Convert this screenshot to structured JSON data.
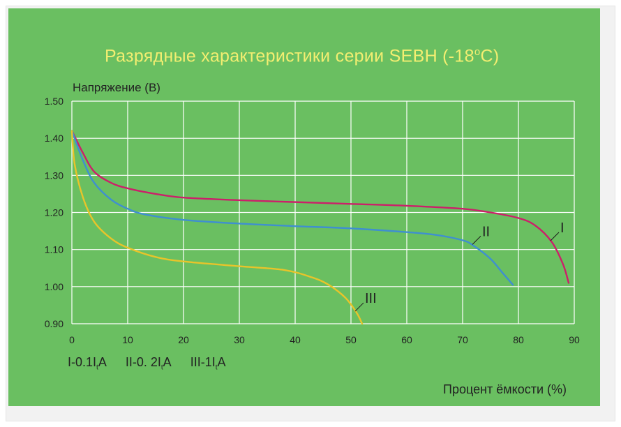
{
  "chart_data": {
    "type": "line",
    "title": "Разрядные характеристики серии SEBH (-18",
    "title_sup": "o",
    "title_tail": "C)",
    "ylabel": "Напряжение (В)",
    "xlabel": "Процент ёмкости (%)",
    "xlim": [
      0,
      90
    ],
    "ylim": [
      0.9,
      1.5
    ],
    "x_ticks": [
      "0",
      "10",
      "20",
      "30",
      "40",
      "50",
      "60",
      "70",
      "80",
      "90"
    ],
    "y_ticks": [
      "0.90",
      "1.00",
      "1.10",
      "1.20",
      "1.30",
      "1.40",
      "1.50"
    ],
    "grid": true,
    "legend_items": [
      {
        "label_a": "I-0.1I",
        "sub": "t",
        "label_b": "A"
      },
      {
        "label_a": "II-0. 2I",
        "sub": "t",
        "label_b": "A"
      },
      {
        "label_a": "III-1I",
        "sub": "t",
        "label_b": "A"
      }
    ],
    "series": [
      {
        "name": "I",
        "color": "#cc1f6a",
        "points": [
          [
            0,
            1.42
          ],
          [
            2,
            1.36
          ],
          [
            4,
            1.31
          ],
          [
            7,
            1.28
          ],
          [
            10,
            1.265
          ],
          [
            15,
            1.25
          ],
          [
            20,
            1.24
          ],
          [
            30,
            1.233
          ],
          [
            40,
            1.228
          ],
          [
            50,
            1.223
          ],
          [
            60,
            1.218
          ],
          [
            70,
            1.21
          ],
          [
            75,
            1.2
          ],
          [
            80,
            1.185
          ],
          [
            83,
            1.165
          ],
          [
            86,
            1.12
          ],
          [
            88,
            1.06
          ],
          [
            89,
            1.01
          ]
        ]
      },
      {
        "name": "II",
        "color": "#3f8fd0",
        "points": [
          [
            0,
            1.42
          ],
          [
            2,
            1.34
          ],
          [
            4,
            1.28
          ],
          [
            7,
            1.235
          ],
          [
            10,
            1.21
          ],
          [
            13,
            1.195
          ],
          [
            20,
            1.18
          ],
          [
            30,
            1.17
          ],
          [
            40,
            1.163
          ],
          [
            50,
            1.157
          ],
          [
            60,
            1.147
          ],
          [
            65,
            1.14
          ],
          [
            70,
            1.125
          ],
          [
            72,
            1.11
          ],
          [
            75,
            1.075
          ],
          [
            77,
            1.04
          ],
          [
            79,
            1.005
          ]
        ]
      },
      {
        "name": "III",
        "color": "#e8c42a",
        "points": [
          [
            0,
            1.42
          ],
          [
            0.5,
            1.33
          ],
          [
            2,
            1.24
          ],
          [
            4,
            1.175
          ],
          [
            7,
            1.13
          ],
          [
            10,
            1.105
          ],
          [
            15,
            1.08
          ],
          [
            20,
            1.068
          ],
          [
            30,
            1.055
          ],
          [
            38,
            1.045
          ],
          [
            43,
            1.025
          ],
          [
            46,
            1.005
          ],
          [
            49,
            0.97
          ],
          [
            51,
            0.93
          ],
          [
            52,
            0.9
          ]
        ]
      }
    ],
    "annotations": [
      {
        "text": "I",
        "series": "I"
      },
      {
        "text": "II",
        "series": "II"
      },
      {
        "text": "III",
        "series": "III"
      }
    ]
  }
}
